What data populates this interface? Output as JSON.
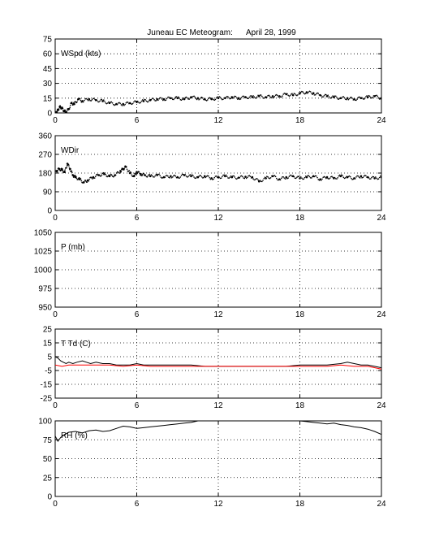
{
  "title": "Juneau EC Meteogram:      April 28, 1999",
  "chart_data": [
    {
      "type": "scatter",
      "label": "WSpd (kts)",
      "xlim": [
        0,
        24
      ],
      "ylim": [
        0,
        75
      ],
      "xticks": [
        0,
        6,
        12,
        18,
        24
      ],
      "yticks": [
        0,
        15,
        30,
        45,
        60,
        75
      ],
      "grid": true,
      "series": [
        {
          "color": "#000000",
          "x": [
            0.1,
            0.2,
            0.35,
            0.5,
            0.65,
            0.8,
            1.0,
            1.2,
            1.4,
            1.7,
            2.0,
            2.5,
            3.0,
            3.5,
            4.0,
            4.5,
            5.0,
            5.5,
            6.0,
            6.5,
            7.0,
            7.5,
            8.0,
            8.5,
            9.0,
            9.5,
            10.0,
            10.5,
            11.0,
            11.5,
            12.0,
            12.5,
            13.0,
            13.5,
            14.0,
            14.5,
            15.0,
            15.5,
            16.0,
            16.5,
            17.0,
            17.5,
            18.0,
            18.5,
            19.0,
            19.5,
            20.0,
            20.5,
            21.0,
            21.5,
            22.0,
            22.5,
            23.0,
            23.5,
            24.0
          ],
          "values": [
            1,
            3,
            6,
            5,
            2,
            1,
            4,
            10,
            9,
            14,
            12,
            14,
            13,
            12,
            10,
            9,
            9,
            10,
            11,
            12,
            13,
            14,
            14,
            15,
            15,
            14,
            16,
            15,
            14,
            14,
            15,
            15,
            16,
            15,
            16,
            16,
            17,
            16,
            17,
            17,
            19,
            18,
            20,
            21,
            20,
            18,
            17,
            16,
            15,
            15,
            14,
            15,
            16,
            17,
            15
          ]
        }
      ]
    },
    {
      "type": "scatter",
      "label": "WDir",
      "xlim": [
        0,
        24
      ],
      "ylim": [
        0,
        360
      ],
      "xticks": [
        0,
        6,
        12,
        18,
        24
      ],
      "yticks": [
        0,
        90,
        180,
        270,
        360
      ],
      "grid": true,
      "series": [
        {
          "color": "#000000",
          "x": [
            0.1,
            0.3,
            0.5,
            0.7,
            0.9,
            1.1,
            1.3,
            1.5,
            1.8,
            2.1,
            2.4,
            2.8,
            3.2,
            3.6,
            4.0,
            4.4,
            4.8,
            5.0,
            5.2,
            5.5,
            5.8,
            6.0,
            6.3,
            6.6,
            7.0,
            7.5,
            8.0,
            8.5,
            9.0,
            9.5,
            10.0,
            10.5,
            11.0,
            11.5,
            12.0,
            12.5,
            13.0,
            13.5,
            14.0,
            14.5,
            15.0,
            15.5,
            16.0,
            16.5,
            17.0,
            17.5,
            18.0,
            18.5,
            19.0,
            19.5,
            20.0,
            20.5,
            21.0,
            21.5,
            22.0,
            22.5,
            23.0,
            23.5,
            24.0
          ],
          "values": [
            190,
            200,
            195,
            185,
            225,
            200,
            170,
            160,
            150,
            135,
            145,
            160,
            170,
            175,
            165,
            170,
            190,
            200,
            210,
            180,
            165,
            185,
            175,
            170,
            165,
            170,
            160,
            165,
            160,
            170,
            165,
            160,
            165,
            155,
            160,
            165,
            160,
            158,
            162,
            160,
            140,
            155,
            165,
            150,
            160,
            165,
            155,
            160,
            165,
            150,
            160,
            155,
            165,
            160,
            155,
            165,
            160,
            155,
            160
          ]
        }
      ]
    },
    {
      "type": "line",
      "label": "P (mb)",
      "xlim": [
        0,
        24
      ],
      "ylim": [
        950,
        1050
      ],
      "xticks": [
        0,
        6,
        12,
        18,
        24
      ],
      "yticks": [
        950,
        975,
        1000,
        1025,
        1050
      ],
      "grid": true,
      "series": []
    },
    {
      "type": "line",
      "label": "T Td (C)",
      "xlim": [
        0,
        24
      ],
      "ylim": [
        -25,
        25
      ],
      "xticks": [
        0,
        6,
        12,
        18,
        24
      ],
      "yticks": [
        -25,
        -15,
        -5,
        5,
        15,
        25
      ],
      "grid": true,
      "series": [
        {
          "name": "T",
          "color": "#000000",
          "x": [
            0,
            0.2,
            0.4,
            0.6,
            0.8,
            1.0,
            1.3,
            1.6,
            2.0,
            2.3,
            2.6,
            3.0,
            3.5,
            4.0,
            4.5,
            5.0,
            5.5,
            6.0,
            6.5,
            7.0,
            7.5,
            8.0,
            9.0,
            10.0,
            11.0,
            12.0,
            13.0,
            14.0,
            15.0,
            16.0,
            17.0,
            18.0,
            19.0,
            20.0,
            21.0,
            21.5,
            22.0,
            22.5,
            23.0,
            23.5,
            24.0
          ],
          "values": [
            5,
            4,
            2,
            1,
            0,
            1,
            0,
            1,
            2,
            1,
            0,
            1,
            0,
            0,
            -1,
            -1,
            -1,
            0,
            -1,
            -1,
            -1,
            -1,
            -1,
            -1,
            -2,
            -2,
            -2,
            -2,
            -2,
            -2,
            -2,
            -1,
            -1,
            -1,
            0,
            1,
            0,
            -1,
            -1,
            -2,
            -3
          ]
        },
        {
          "name": "Td",
          "color": "#ff0000",
          "x": [
            0,
            0.5,
            1.0,
            1.5,
            2.0,
            3.0,
            4.0,
            5.0,
            6.0,
            7.0,
            8.0,
            9.0,
            10.0,
            11.0,
            12.0,
            13.0,
            14.0,
            15.0,
            16.0,
            17.0,
            18.0,
            19.0,
            20.0,
            21.0,
            22.0,
            23.0,
            24.0
          ],
          "values": [
            -1,
            -2,
            -1,
            -1,
            -1,
            -1,
            -1,
            -2,
            -1,
            -2,
            -2,
            -2,
            -2,
            -2,
            -2,
            -2,
            -2,
            -2,
            -2,
            -2,
            -2,
            -2,
            -2,
            -1,
            -2,
            -2,
            -4
          ]
        }
      ]
    },
    {
      "type": "line",
      "label": "RH (%)",
      "xlim": [
        0,
        24
      ],
      "ylim": [
        0,
        100
      ],
      "xticks": [
        0,
        6,
        12,
        18,
        24
      ],
      "yticks": [
        0,
        25,
        50,
        75,
        100
      ],
      "grid": true,
      "series": [
        {
          "color": "#000000",
          "segments": [
            {
              "x": [
                0,
                0.2,
                0.4,
                0.7,
                1.0,
                1.5,
                2.0,
                2.5,
                3.0,
                3.5,
                4.0,
                4.5,
                5.0,
                5.5,
                6.0,
                6.5,
                7.0,
                7.5,
                8.0,
                8.5,
                9.0,
                9.5,
                10.0,
                10.5,
                10.8
              ],
              "values": [
                80,
                73,
                78,
                82,
                85,
                86,
                84,
                87,
                88,
                86,
                87,
                90,
                93,
                92,
                90,
                91,
                92,
                93,
                94,
                95,
                96,
                97,
                98,
                100,
                100
              ]
            },
            {
              "x": [
                18.0,
                18.5,
                19.0,
                19.5,
                20.0,
                20.5,
                21.0,
                21.5,
                22.0,
                22.5,
                23.0,
                23.5,
                24.0
              ],
              "values": [
                100,
                99,
                98,
                97,
                96,
                97,
                95,
                94,
                92,
                91,
                89,
                86,
                82
              ]
            }
          ]
        }
      ]
    }
  ]
}
